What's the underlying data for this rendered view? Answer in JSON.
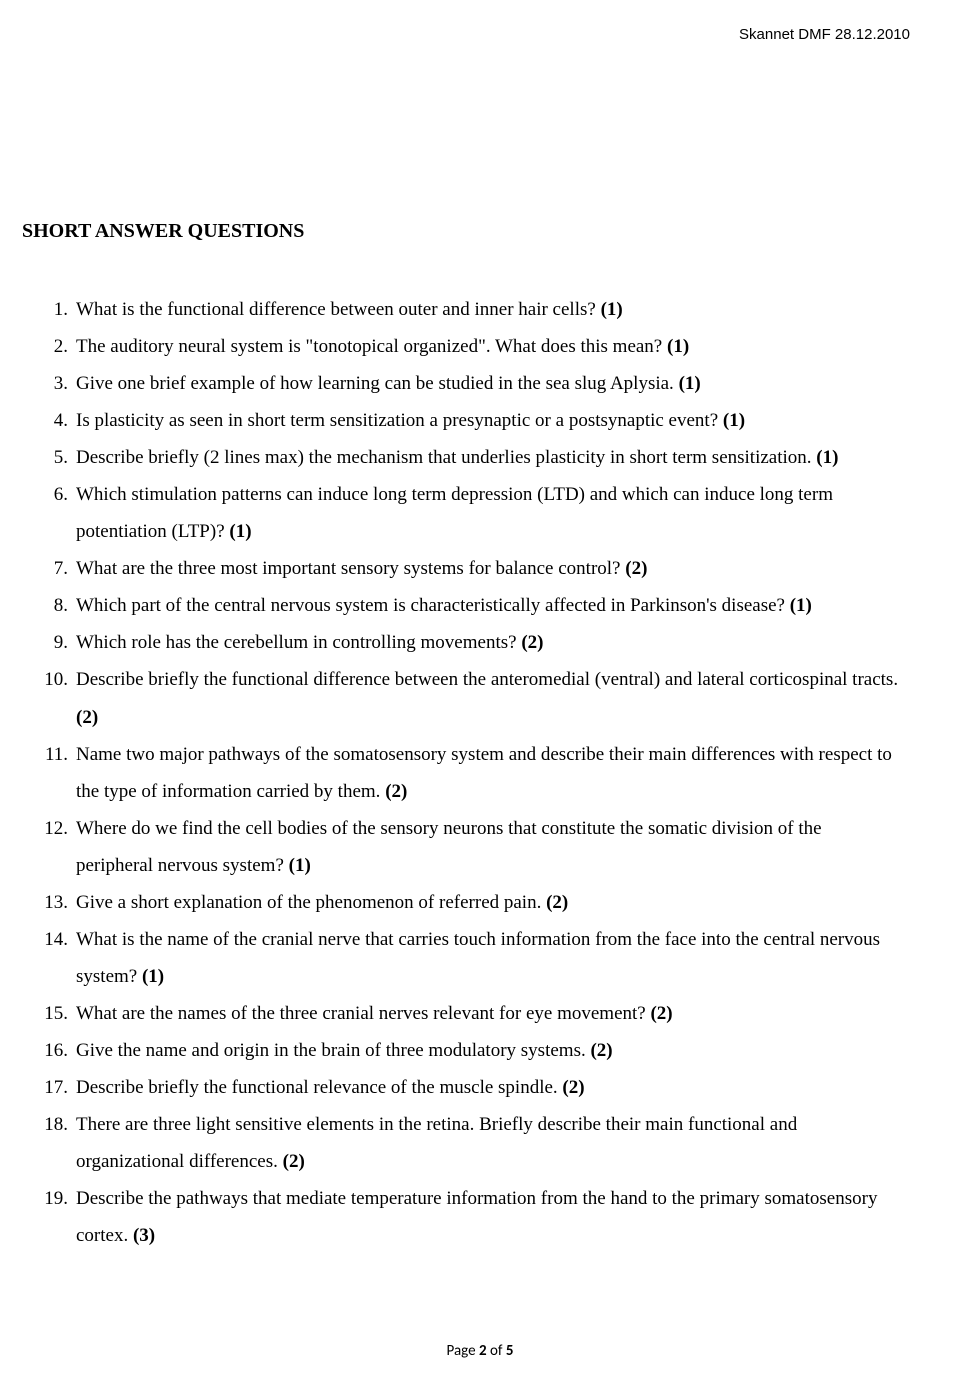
{
  "header_stamp": "Skannet DMF 28.12.2010",
  "section_title": "SHORT ANSWER QUESTIONS",
  "questions": [
    {
      "text": "What is the functional difference between outer and inner hair cells? ",
      "points": "(1)"
    },
    {
      "text": "The auditory neural system is \"tonotopical organized\". What does this mean? ",
      "points": "(1)"
    },
    {
      "text": "Give one brief example of how learning can be studied in the sea slug Aplysia. ",
      "points": "(1)"
    },
    {
      "text": "Is plasticity as seen in short term sensitization a presynaptic or a postsynaptic event? ",
      "points": "(1)"
    },
    {
      "text": "Describe briefly (2 lines max) the mechanism that underlies plasticity in short term sensitization. ",
      "points": "(1)"
    },
    {
      "text": "Which stimulation patterns can induce long term depression (LTD) and which can induce long term potentiation (LTP)? ",
      "points": "(1)"
    },
    {
      "text": "What are the three most important sensory systems for balance control? ",
      "points": "(2)"
    },
    {
      "text": "Which part of the central nervous system is characteristically affected in Parkinson's disease? ",
      "points": "(1)"
    },
    {
      "text": "Which role has the cerebellum in controlling movements? ",
      "points": "(2)"
    },
    {
      "text": "Describe briefly the functional difference between the anteromedial (ventral) and lateral corticospinal tracts. ",
      "points": "(2)"
    },
    {
      "text": "Name two major pathways of the somatosensory system and describe their main differences with respect to the type of information carried by them. ",
      "points": "(2)"
    },
    {
      "text": "Where do we find the cell bodies of the sensory neurons that constitute the somatic division of the peripheral nervous system? ",
      "points": "(1)"
    },
    {
      "text": "Give a short explanation of the phenomenon of referred pain. ",
      "points": "(2)"
    },
    {
      "text": "What is the name of the cranial nerve that carries touch information from the face into the central nervous system? ",
      "points": "(1)"
    },
    {
      "text": "What are the names of the three cranial nerves relevant for eye movement? ",
      "points": "(2)"
    },
    {
      "text": "Give the name and origin in the brain of three modulatory systems.  ",
      "points": "(2)"
    },
    {
      "text": "Describe briefly the functional relevance of the muscle spindle. ",
      "points": "(2)"
    },
    {
      "text": "There are three light sensitive elements in the retina. Briefly describe their main functional and organizational differences. ",
      "points": "(2)"
    },
    {
      "text": "Describe the pathways that mediate temperature information from the hand to the primary somatosensory cortex.  ",
      "points": "(3)"
    }
  ],
  "footer": {
    "page_label": "Page ",
    "current": "2",
    "of_label": " of ",
    "total": "5"
  }
}
